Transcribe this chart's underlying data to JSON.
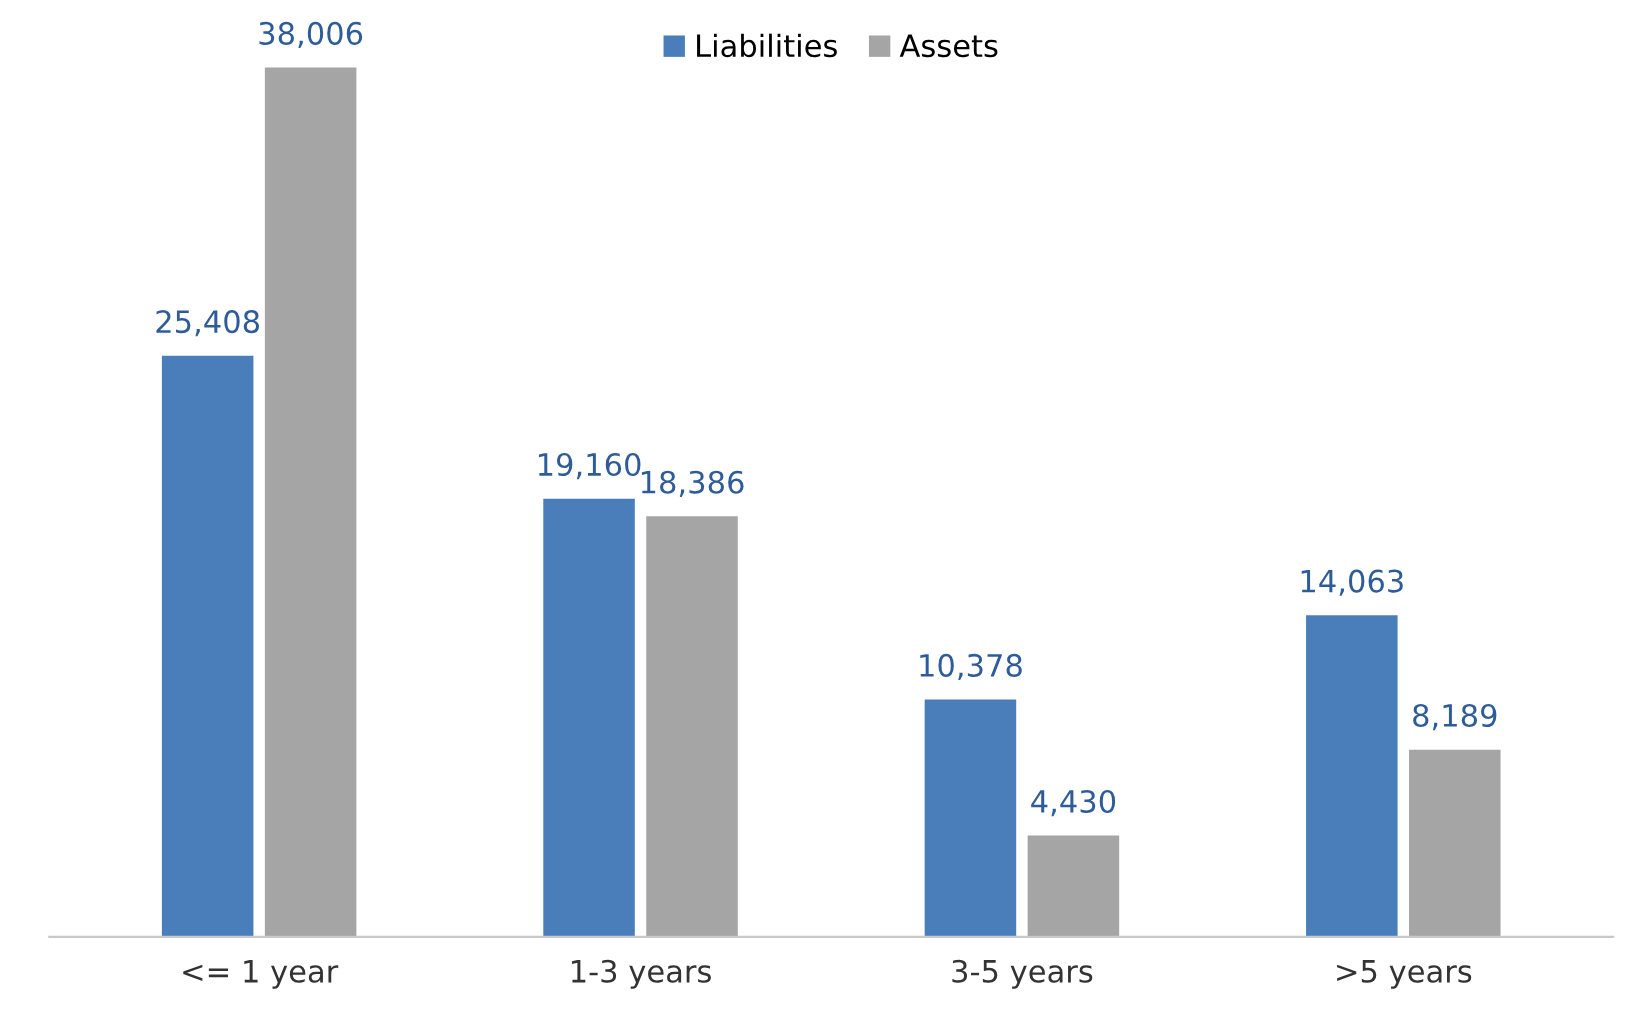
{
  "chart_data": {
    "type": "bar",
    "categories": [
      "<= 1 year",
      "1-3 years",
      "3-5 years",
      ">5 years"
    ],
    "series": [
      {
        "name": "Liabilities",
        "color": "#4a7ebb",
        "values": [
          25408,
          19160,
          10378,
          14063
        ],
        "value_labels": [
          "25,408",
          "19,160",
          "10,378",
          "14,063"
        ]
      },
      {
        "name": "Assets",
        "color": "#a5a5a5",
        "values": [
          38006,
          18386,
          4430,
          8189
        ],
        "value_labels": [
          "38,006",
          "18,386",
          "4,430",
          "8,189"
        ]
      }
    ],
    "legend": "top",
    "grid": false
  }
}
